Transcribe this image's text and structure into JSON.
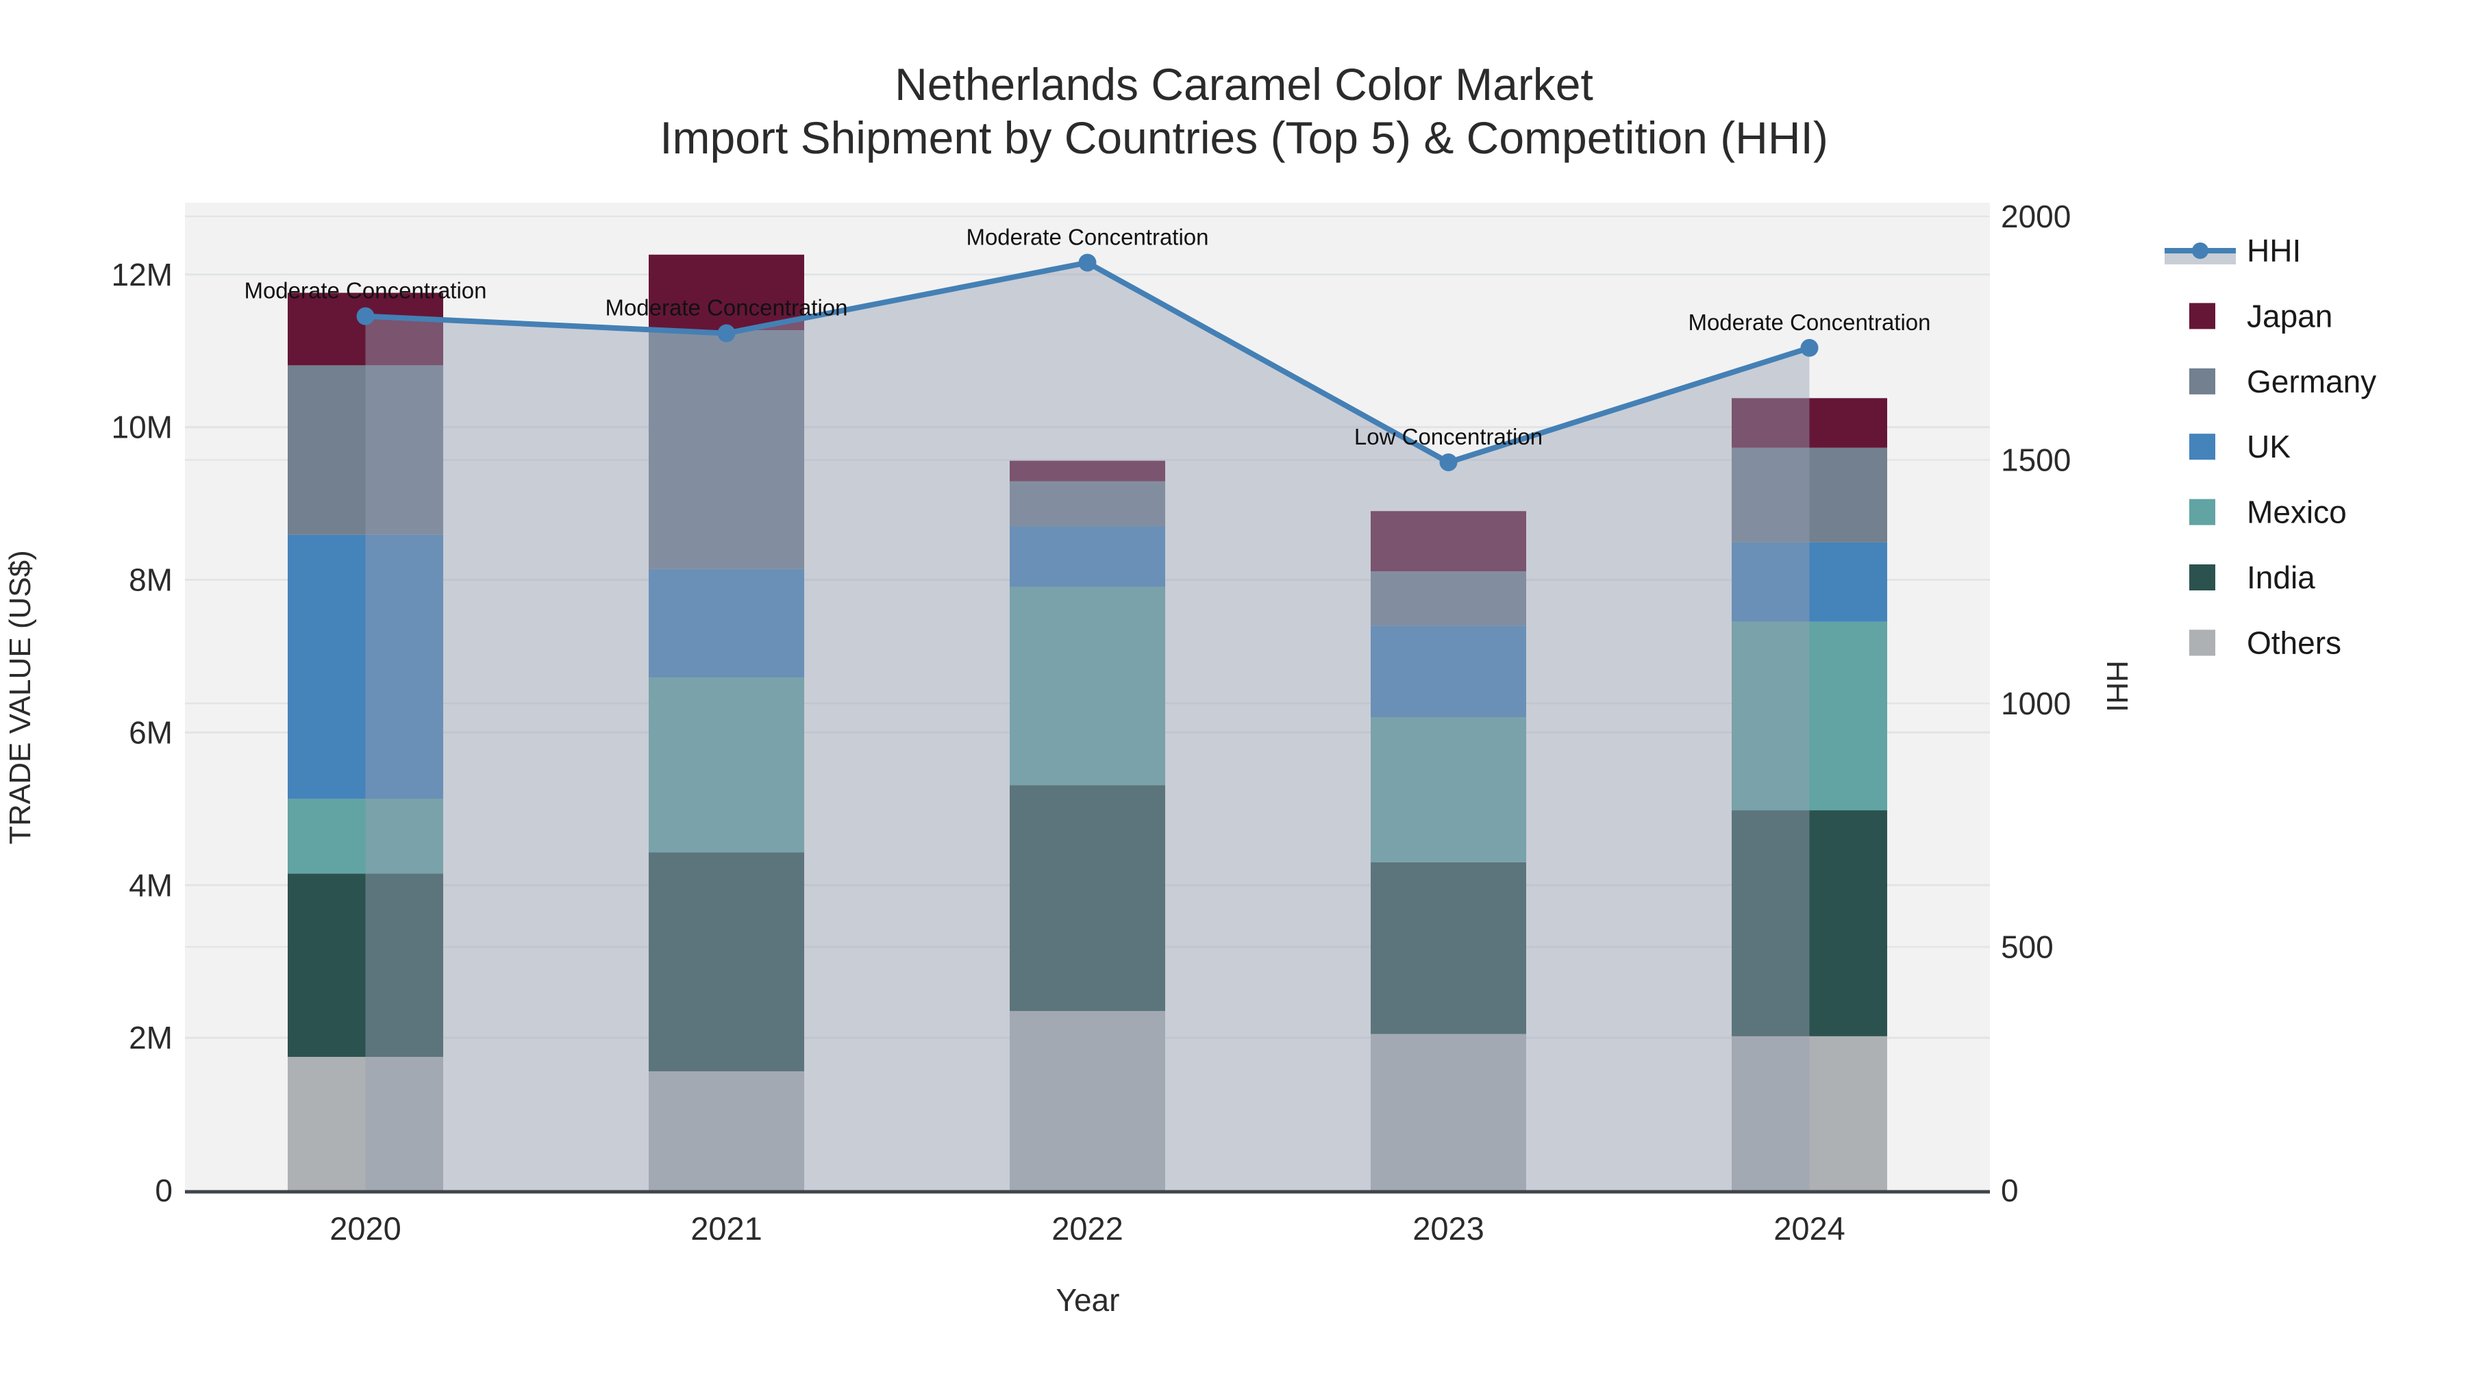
{
  "chart_data": {
    "type": "combo-stacked-bar-line",
    "title": "Netherlands Caramel Color Market",
    "subtitle": "Import Shipment by Countries (Top 5) & Competition (HHI)",
    "x_label": "Year",
    "y_left_label": "TRADE VALUE (US$)",
    "y_right_label": "HHI",
    "categories": [
      "2020",
      "2021",
      "2022",
      "2023",
      "2024"
    ],
    "bar_value_unit": "millions of US$",
    "stack_order_bottom_to_top": [
      "Others",
      "India",
      "Mexico",
      "UK",
      "Germany",
      "Japan"
    ],
    "bar_series": [
      {
        "name": "Japan",
        "color": "#651637",
        "values": [
          0.95,
          0.99,
          0.27,
          0.79,
          0.65
        ]
      },
      {
        "name": "Germany",
        "color": "#72808F",
        "values": [
          2.22,
          3.13,
          0.59,
          0.71,
          1.24
        ]
      },
      {
        "name": "UK",
        "color": "#4583BB",
        "values": [
          3.46,
          1.42,
          0.79,
          1.2,
          1.04
        ]
      },
      {
        "name": "Mexico",
        "color": "#61A4A3",
        "values": [
          0.98,
          2.29,
          2.6,
          1.9,
          2.47
        ]
      },
      {
        "name": "India",
        "color": "#2C524F",
        "values": [
          2.4,
          2.87,
          2.96,
          2.25,
          2.96
        ]
      },
      {
        "name": "Others",
        "color": "#ADB1B3",
        "values": [
          1.75,
          1.56,
          2.35,
          2.05,
          2.02
        ]
      }
    ],
    "bar_totals": [
      11.76,
      12.26,
      9.56,
      8.9,
      10.38
    ],
    "line_series": {
      "name": "HHI",
      "color": "#4480B5",
      "area_fill": "rgba(150,160,180,0.45)",
      "legend_area_swatch": "#C9CDD6",
      "values": [
        1795,
        1760,
        1905,
        1495,
        1730
      ]
    },
    "annotations": [
      {
        "x": "2020",
        "text": "Moderate Concentration"
      },
      {
        "x": "2021",
        "text": "Moderate Concentration"
      },
      {
        "x": "2022",
        "text": "Moderate Concentration"
      },
      {
        "x": "2023",
        "text": "Low Concentration"
      },
      {
        "x": "2024",
        "text": "Moderate Concentration"
      }
    ],
    "y_left_ticks": [
      "0",
      "2M",
      "4M",
      "6M",
      "8M",
      "10M",
      "12M"
    ],
    "y_left_tick_values": [
      0,
      2,
      4,
      6,
      8,
      10,
      12
    ],
    "y_left_range_m": [
      0,
      12.94
    ],
    "y_right_ticks": [
      "0",
      "500",
      "1000",
      "1500",
      "2000"
    ],
    "y_right_tick_values": [
      0,
      500,
      1000,
      1500,
      2000
    ],
    "y_right_range": [
      0,
      2028
    ],
    "grid": true,
    "legend_position": "right",
    "legend_items": [
      "HHI",
      "Japan",
      "Germany",
      "UK",
      "Mexico",
      "India",
      "Others"
    ]
  },
  "colors": {
    "figure_bg": "#FFFFFF",
    "plot_bg": "#F2F2F2",
    "grid": "#E2E4E6",
    "axis_line": "#3F454A",
    "text": "#2B2B2B"
  }
}
